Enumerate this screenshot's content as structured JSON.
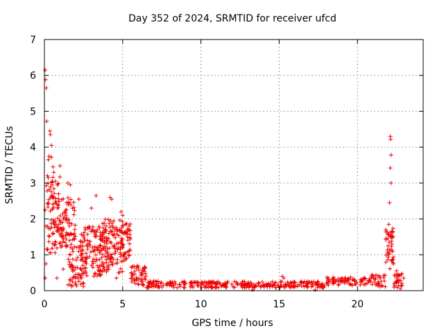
{
  "chart_data": {
    "type": "scatter",
    "title": "Day 352 of 2024, SRMTID for receiver ufcd",
    "xlabel": "GPS time / hours",
    "ylabel": "SRMTID / TECUs",
    "xlim": [
      0,
      24.2
    ],
    "ylim": [
      0,
      7
    ],
    "x_ticks": [
      0,
      5,
      10,
      15,
      20
    ],
    "y_ticks": [
      0,
      1,
      2,
      3,
      4,
      5,
      6,
      7
    ],
    "grid": true,
    "marker": "+",
    "series_color": "#ee0000",
    "series": [
      {
        "name": "SRMTID",
        "points": [
          [
            0.05,
            6.15
          ],
          [
            0.08,
            5.88
          ],
          [
            0.12,
            5.65
          ],
          [
            0.15,
            4.72
          ],
          [
            0.35,
            4.45
          ],
          [
            0.38,
            4.35
          ],
          [
            0.45,
            4.05
          ],
          [
            0.45,
            3.72
          ],
          [
            0.25,
            3.65
          ],
          [
            0.3,
            3.75
          ],
          [
            0.55,
            3.45
          ],
          [
            1.0,
            3.48
          ],
          [
            0.6,
            3.3
          ],
          [
            0.2,
            3.2
          ],
          [
            0.7,
            3.05
          ],
          [
            1.5,
            3.0
          ],
          [
            1.65,
            2.95
          ],
          [
            0.05,
            2.25
          ],
          [
            0.1,
            1.8
          ],
          [
            0.2,
            1.15
          ],
          [
            0.1,
            0.75
          ],
          [
            0.05,
            0.35
          ],
          [
            1.0,
            1.95
          ],
          [
            1.3,
            2.2
          ],
          [
            1.6,
            1.8
          ],
          [
            1.9,
            1.45
          ],
          [
            2.2,
            2.55
          ],
          [
            2.6,
            1.75
          ],
          [
            3.3,
            2.65
          ],
          [
            4.2,
            2.6
          ],
          [
            4.3,
            2.55
          ],
          [
            4.9,
            2.2
          ],
          [
            5.0,
            2.1
          ],
          [
            3.0,
            2.3
          ],
          [
            2.3,
            0.35
          ],
          [
            2.5,
            0.2
          ],
          [
            2.0,
            0.45
          ],
          [
            3.5,
            0.45
          ],
          [
            3.8,
            0.75
          ],
          [
            4.6,
            0.35
          ],
          [
            0.8,
            0.35
          ],
          [
            1.2,
            0.6
          ],
          [
            22.1,
            4.3
          ],
          [
            22.12,
            4.22
          ],
          [
            22.15,
            3.78
          ],
          [
            22.1,
            3.42
          ],
          [
            22.15,
            3.0
          ],
          [
            22.05,
            2.45
          ],
          [
            22.0,
            1.85
          ],
          [
            22.2,
            1.65
          ],
          [
            21.95,
            1.45
          ],
          [
            22.2,
            1.3
          ],
          [
            22.3,
            0.75
          ],
          [
            22.5,
            0.55
          ],
          [
            22.65,
            0.3
          ],
          [
            22.8,
            0.15
          ],
          [
            22.95,
            0.35
          ],
          [
            22.4,
            0.45
          ],
          [
            13.3,
            0.02
          ],
          [
            17.3,
            0.02
          ],
          [
            15.2,
            0.4
          ],
          [
            15.3,
            0.35
          ]
        ],
        "clusters": [
          {
            "x_range": [
              0.1,
              1.0
            ],
            "y_range": [
              1.0,
              3.2
            ],
            "count": 90
          },
          {
            "x_range": [
              1.0,
              2.0
            ],
            "y_range": [
              1.2,
              2.6
            ],
            "count": 70
          },
          {
            "x_range": [
              1.5,
              2.5
            ],
            "y_range": [
              0.1,
              1.3
            ],
            "count": 60
          },
          {
            "x_range": [
              2.3,
              4.0
            ],
            "y_range": [
              0.4,
              1.8
            ],
            "count": 120
          },
          {
            "x_range": [
              3.5,
              5.0
            ],
            "y_range": [
              0.5,
              2.0
            ],
            "count": 110
          },
          {
            "x_range": [
              4.8,
              5.5
            ],
            "y_range": [
              0.8,
              1.9
            ],
            "count": 50
          },
          {
            "x_range": [
              5.5,
              6.5
            ],
            "y_range": [
              0.15,
              0.7
            ],
            "count": 50
          },
          {
            "x_range": [
              6.5,
              8.0
            ],
            "y_range": [
              0.08,
              0.28
            ],
            "count": 40
          },
          {
            "x_range": [
              8.0,
              13.0
            ],
            "y_range": [
              0.08,
              0.26
            ],
            "count": 130
          },
          {
            "x_range": [
              13.0,
              18.0
            ],
            "y_range": [
              0.08,
              0.26
            ],
            "count": 130
          },
          {
            "x_range": [
              18.0,
              21.0
            ],
            "y_range": [
              0.15,
              0.38
            ],
            "count": 80
          },
          {
            "x_range": [
              20.8,
              21.8
            ],
            "y_range": [
              0.1,
              0.45
            ],
            "count": 30
          },
          {
            "x_range": [
              21.8,
              22.3
            ],
            "y_range": [
              0.6,
              1.75
            ],
            "count": 40
          },
          {
            "x_range": [
              22.3,
              22.9
            ],
            "y_range": [
              0.0,
              0.5
            ],
            "count": 25
          }
        ]
      }
    ]
  }
}
